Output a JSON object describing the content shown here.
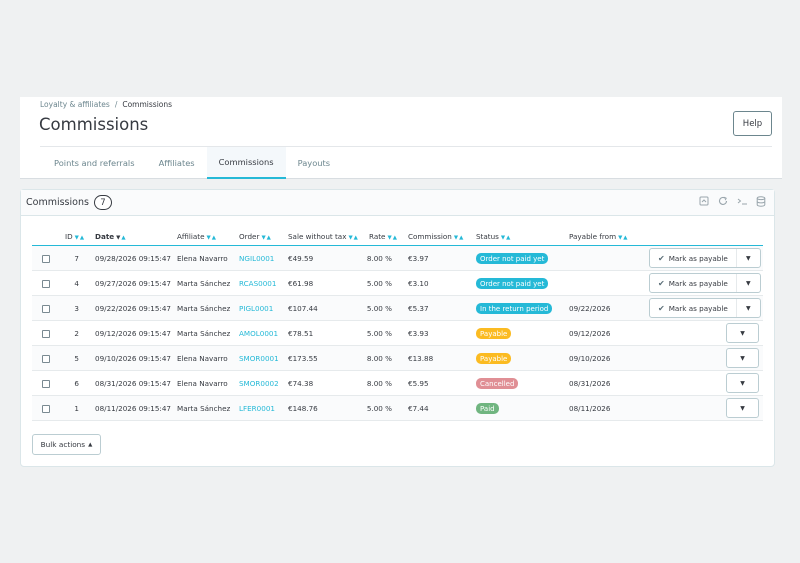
{
  "breadcrumb": {
    "parent": "Loyalty & affiliates",
    "separator": "/",
    "current": "Commissions"
  },
  "page_title": "Commissions",
  "help_label": "Help",
  "tabs": [
    {
      "label": "Points and referrals"
    },
    {
      "label": "Affiliates"
    },
    {
      "label": "Commissions",
      "active": true
    },
    {
      "label": "Payouts"
    }
  ],
  "card": {
    "title": "Commissions",
    "count": "7",
    "icons": [
      "export-icon",
      "refresh-icon",
      "sql-query-icon",
      "database-icon"
    ]
  },
  "table": {
    "columns": [
      "ID",
      "Date",
      "Affiliate",
      "Order",
      "Sale without tax",
      "Rate",
      "Commission",
      "Status",
      "Payable from"
    ],
    "rows": [
      {
        "id": "7",
        "date": "09/28/2026 09:15:47",
        "affiliate": "Elena Navarro",
        "order": "NGIL0001",
        "sale": "€49.59",
        "rate": "8.00 %",
        "commission": "€3.97",
        "status": "Order not paid yet",
        "status_color": "#25b9d7",
        "payable_from": "",
        "action": "Mark as payable"
      },
      {
        "id": "4",
        "date": "09/27/2026 09:15:47",
        "affiliate": "Marta Sánchez",
        "order": "RCAS0001",
        "sale": "€61.98",
        "rate": "5.00 %",
        "commission": "€3.10",
        "status": "Order not paid yet",
        "status_color": "#25b9d7",
        "payable_from": "",
        "action": "Mark as payable"
      },
      {
        "id": "3",
        "date": "09/22/2026 09:15:47",
        "affiliate": "Marta Sánchez",
        "order": "PIGL0001",
        "sale": "€107.44",
        "rate": "5.00 %",
        "commission": "€5.37",
        "status": "In the return period",
        "status_color": "#25b9d7",
        "payable_from": "09/22/2026",
        "action": "Mark as payable"
      },
      {
        "id": "2",
        "date": "09/12/2026 09:15:47",
        "affiliate": "Marta Sánchez",
        "order": "AMOL0001",
        "sale": "€78.51",
        "rate": "5.00 %",
        "commission": "€3.93",
        "status": "Payable",
        "status_color": "#fbbb22",
        "payable_from": "09/12/2026",
        "action": ""
      },
      {
        "id": "5",
        "date": "09/10/2026 09:15:47",
        "affiliate": "Elena Navarro",
        "order": "SMOR0001",
        "sale": "€173.55",
        "rate": "8.00 %",
        "commission": "€13.88",
        "status": "Payable",
        "status_color": "#fbbb22",
        "payable_from": "09/10/2026",
        "action": ""
      },
      {
        "id": "6",
        "date": "08/31/2026 09:15:47",
        "affiliate": "Elena Navarro",
        "order": "SMOR0002",
        "sale": "€74.38",
        "rate": "8.00 %",
        "commission": "€5.95",
        "status": "Cancelled",
        "status_color": "#e08f95",
        "payable_from": "08/31/2026",
        "action": ""
      },
      {
        "id": "1",
        "date": "08/11/2026 09:15:47",
        "affiliate": "Marta Sánchez",
        "order": "LFER0001",
        "sale": "€148.76",
        "rate": "5.00 %",
        "commission": "€7.44",
        "status": "Paid",
        "status_color": "#70b580",
        "payable_from": "08/11/2026",
        "action": ""
      }
    ]
  },
  "bulk_actions_label": "Bulk actions"
}
